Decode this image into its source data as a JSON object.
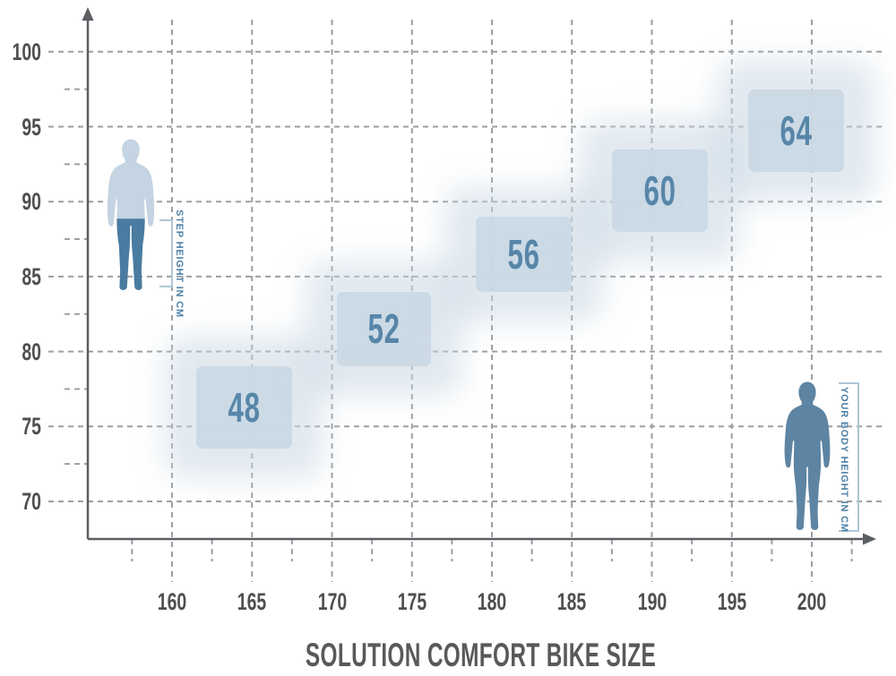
{
  "title": "SOLUTION COMFORT BIKE SIZE",
  "side_labels": {
    "step": "STEP HEIGHT IN CM",
    "body": "YOUR BODY HEIGHT IN CM"
  },
  "chart_data": {
    "type": "heatmap",
    "title": "SOLUTION COMFORT BIKE SIZE",
    "xlabel": "YOUR BODY HEIGHT IN CM",
    "ylabel": "STEP HEIGHT IN CM",
    "x_ticks": [
      160,
      165,
      170,
      175,
      180,
      185,
      190,
      195,
      200
    ],
    "y_ticks": [
      100,
      95,
      90,
      85,
      80,
      75,
      70
    ],
    "xlim": [
      155,
      204
    ],
    "ylim": [
      67.5,
      102.5
    ],
    "grid": true,
    "minor_tick_step": 2.5,
    "legend_position": "none",
    "sizes": [
      {
        "label": "48",
        "body_height": [
          161.5,
          167.5
        ],
        "step_height": [
          73.5,
          79
        ]
      },
      {
        "label": "52",
        "body_height": [
          170.3,
          176.2
        ],
        "step_height": [
          79,
          84
        ]
      },
      {
        "label": "56",
        "body_height": [
          179,
          185
        ],
        "step_height": [
          84,
          89
        ]
      },
      {
        "label": "60",
        "body_height": [
          187.5,
          193.5
        ],
        "step_height": [
          88,
          93.5
        ]
      },
      {
        "label": "64",
        "body_height": [
          196,
          202
        ],
        "step_height": [
          92,
          97.5
        ]
      }
    ]
  },
  "colors": {
    "box_fill": "#cbd9e5",
    "box_glow": "#c9d7e3",
    "number": "#4d7fa4",
    "axis_label": "#4f4f51",
    "title_color": "#59595b",
    "grid": "#9c9fa2",
    "axis_line": "#5b5e62",
    "figure_light": "#c4d4e2",
    "figure_dark": "#4a7ba0",
    "figure_right": "#5d84a2",
    "bracket": "#afc6d6",
    "side_label": "#4d80a6"
  }
}
